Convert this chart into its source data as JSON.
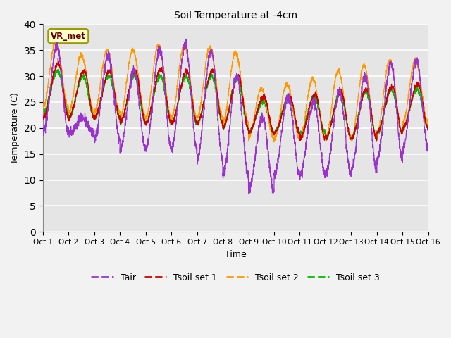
{
  "title": "Soil Temperature at -4cm",
  "xlabel": "Time",
  "ylabel": "Temperature (C)",
  "xlim": [
    0,
    15
  ],
  "ylim": [
    0,
    40
  ],
  "yticks": [
    0,
    5,
    10,
    15,
    20,
    25,
    30,
    35,
    40
  ],
  "xtick_labels": [
    "Oct 1",
    "Oct 2",
    "Oct 3",
    "Oct 4",
    "Oct 5",
    "Oct 6",
    "Oct 7",
    "Oct 8",
    "Oct 9",
    "Oct 10",
    "Oct 11",
    "Oct 12",
    "Oct 13",
    "Oct 14",
    "Oct 15",
    "Oct 16"
  ],
  "colors": {
    "Tair": "#9933cc",
    "Tsoil_set1": "#cc0000",
    "Tsoil_set2": "#ff9900",
    "Tsoil_set3": "#00bb00"
  },
  "legend_labels": [
    "Tair",
    "Tsoil set 1",
    "Tsoil set 2",
    "Tsoil set 3"
  ],
  "background_color": "#e5e5e5",
  "fig_color": "#f2f2f2",
  "annotation_text": "VR_met",
  "annotation_box_color": "#ffffcc",
  "annotation_border_color": "#999900"
}
